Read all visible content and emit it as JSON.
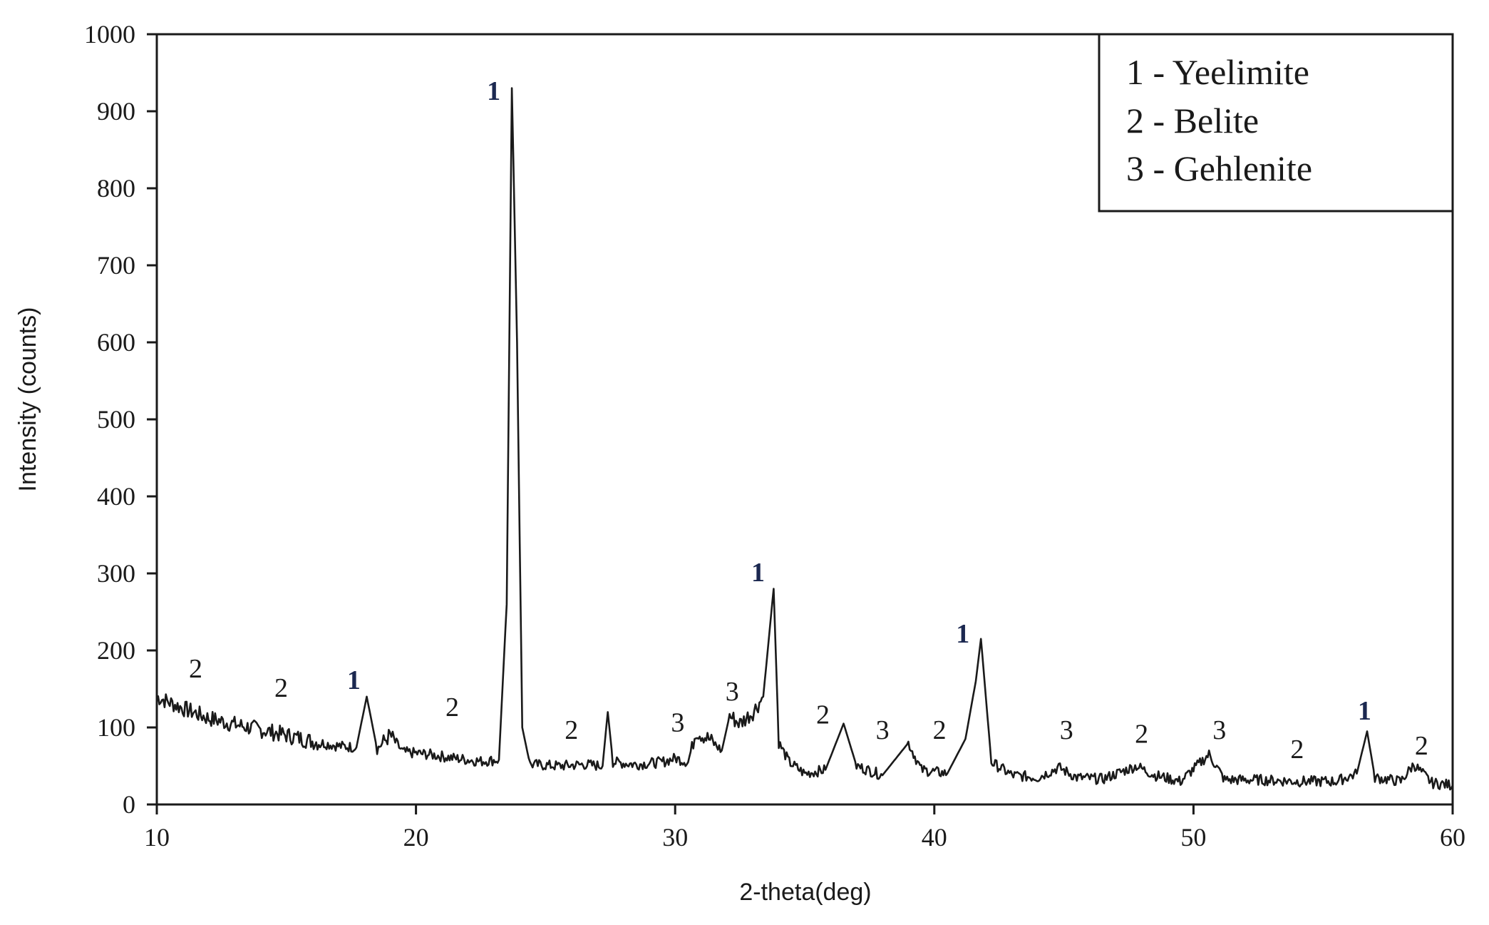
{
  "chart_data": {
    "type": "line",
    "xlabel": "2-theta(deg)",
    "ylabel": "Intensity (counts)",
    "xlim": [
      10,
      60
    ],
    "ylim": [
      0,
      1000
    ],
    "xticks": [
      10,
      20,
      30,
      40,
      50,
      60
    ],
    "yticks": [
      0,
      100,
      200,
      300,
      400,
      500,
      600,
      700,
      800,
      900,
      1000
    ],
    "grid": false,
    "legend_placement": "top-right",
    "legend": [
      "1 - Yeelimite",
      "2 - Belite",
      "3 - Gehlenite"
    ],
    "line_color": "#1a1a1a",
    "series": [
      {
        "values": [
          {
            "x": 10.0,
            "y": 140
          },
          {
            "x": 11.0,
            "y": 125
          },
          {
            "x": 12.0,
            "y": 112
          },
          {
            "x": 13.0,
            "y": 104
          },
          {
            "x": 14.0,
            "y": 97
          },
          {
            "x": 15.0,
            "y": 90
          },
          {
            "x": 16.0,
            "y": 82
          },
          {
            "x": 17.0,
            "y": 76
          },
          {
            "x": 17.7,
            "y": 74
          },
          {
            "x": 18.1,
            "y": 140
          },
          {
            "x": 18.5,
            "y": 72
          },
          {
            "x": 19.0,
            "y": 90
          },
          {
            "x": 19.5,
            "y": 68
          },
          {
            "x": 20.5,
            "y": 65
          },
          {
            "x": 21.5,
            "y": 60
          },
          {
            "x": 22.5,
            "y": 56
          },
          {
            "x": 23.2,
            "y": 58
          },
          {
            "x": 23.5,
            "y": 260
          },
          {
            "x": 23.7,
            "y": 930
          },
          {
            "x": 23.9,
            "y": 600
          },
          {
            "x": 24.1,
            "y": 100
          },
          {
            "x": 24.4,
            "y": 52
          },
          {
            "x": 25.5,
            "y": 50
          },
          {
            "x": 26.5,
            "y": 52
          },
          {
            "x": 27.2,
            "y": 50
          },
          {
            "x": 27.4,
            "y": 120
          },
          {
            "x": 27.6,
            "y": 55
          },
          {
            "x": 28.5,
            "y": 52
          },
          {
            "x": 29.5,
            "y": 55
          },
          {
            "x": 30.0,
            "y": 60
          },
          {
            "x": 30.5,
            "y": 55
          },
          {
            "x": 30.8,
            "y": 95
          },
          {
            "x": 31.3,
            "y": 85
          },
          {
            "x": 31.8,
            "y": 70
          },
          {
            "x": 32.1,
            "y": 115
          },
          {
            "x": 32.5,
            "y": 105
          },
          {
            "x": 33.0,
            "y": 120
          },
          {
            "x": 33.4,
            "y": 140
          },
          {
            "x": 33.8,
            "y": 280
          },
          {
            "x": 34.0,
            "y": 80
          },
          {
            "x": 34.4,
            "y": 55
          },
          {
            "x": 35.0,
            "y": 40
          },
          {
            "x": 35.8,
            "y": 45
          },
          {
            "x": 36.5,
            "y": 105
          },
          {
            "x": 37.0,
            "y": 50
          },
          {
            "x": 38.0,
            "y": 38
          },
          {
            "x": 39.0,
            "y": 80
          },
          {
            "x": 39.5,
            "y": 45
          },
          {
            "x": 40.5,
            "y": 40
          },
          {
            "x": 41.2,
            "y": 85
          },
          {
            "x": 41.6,
            "y": 160
          },
          {
            "x": 41.8,
            "y": 215
          },
          {
            "x": 42.2,
            "y": 55
          },
          {
            "x": 43.0,
            "y": 38
          },
          {
            "x": 44.0,
            "y": 35
          },
          {
            "x": 44.8,
            "y": 48
          },
          {
            "x": 45.5,
            "y": 35
          },
          {
            "x": 46.5,
            "y": 33
          },
          {
            "x": 47.8,
            "y": 50
          },
          {
            "x": 48.5,
            "y": 38
          },
          {
            "x": 49.5,
            "y": 30
          },
          {
            "x": 50.6,
            "y": 65
          },
          {
            "x": 51.2,
            "y": 32
          },
          {
            "x": 52.5,
            "y": 32
          },
          {
            "x": 54.0,
            "y": 30
          },
          {
            "x": 55.5,
            "y": 30
          },
          {
            "x": 56.3,
            "y": 40
          },
          {
            "x": 56.7,
            "y": 95
          },
          {
            "x": 57.0,
            "y": 35
          },
          {
            "x": 58.0,
            "y": 30
          },
          {
            "x": 58.5,
            "y": 52
          },
          {
            "x": 59.2,
            "y": 28
          },
          {
            "x": 60.0,
            "y": 25
          }
        ]
      }
    ],
    "annotations": [
      {
        "text": "2",
        "x": 11.5,
        "y": 165,
        "bold": false
      },
      {
        "text": "2",
        "x": 14.8,
        "y": 140,
        "bold": false
      },
      {
        "text": "1",
        "x": 17.6,
        "y": 150,
        "bold": true
      },
      {
        "text": "2",
        "x": 21.4,
        "y": 115,
        "bold": false
      },
      {
        "text": "1",
        "x": 23.0,
        "y": 915,
        "bold": true
      },
      {
        "text": "2",
        "x": 26.0,
        "y": 85,
        "bold": false
      },
      {
        "text": "3",
        "x": 30.1,
        "y": 95,
        "bold": false
      },
      {
        "text": "3",
        "x": 32.2,
        "y": 135,
        "bold": false
      },
      {
        "text": "1",
        "x": 33.2,
        "y": 290,
        "bold": true
      },
      {
        "text": "2",
        "x": 35.7,
        "y": 105,
        "bold": false
      },
      {
        "text": "3",
        "x": 38.0,
        "y": 85,
        "bold": false
      },
      {
        "text": "2",
        "x": 40.2,
        "y": 85,
        "bold": false
      },
      {
        "text": "1",
        "x": 41.1,
        "y": 210,
        "bold": true
      },
      {
        "text": "3",
        "x": 45.1,
        "y": 85,
        "bold": false
      },
      {
        "text": "2",
        "x": 48.0,
        "y": 80,
        "bold": false
      },
      {
        "text": "3",
        "x": 51.0,
        "y": 85,
        "bold": false
      },
      {
        "text": "2",
        "x": 54.0,
        "y": 60,
        "bold": false
      },
      {
        "text": "1",
        "x": 56.6,
        "y": 110,
        "bold": true
      },
      {
        "text": "2",
        "x": 58.8,
        "y": 65,
        "bold": false
      }
    ]
  }
}
